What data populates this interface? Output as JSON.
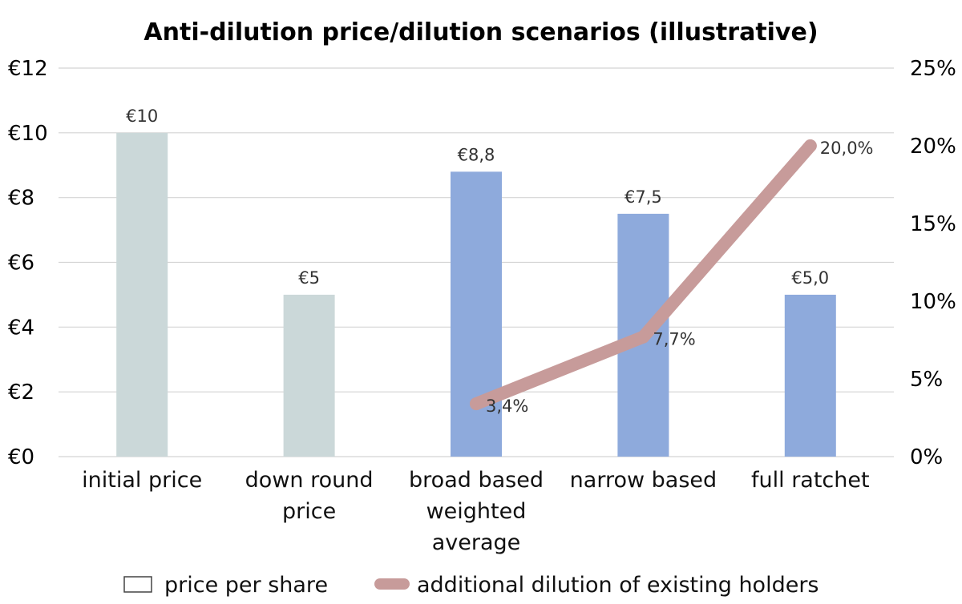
{
  "chart_data": {
    "type": "bar",
    "title": "Anti-dilution price/dilution scenarios (illustrative)",
    "categories": [
      [
        "initial price"
      ],
      [
        "down round",
        "price"
      ],
      [
        "broad based",
        "weighted",
        "average"
      ],
      [
        "narrow based"
      ],
      [
        "full ratchet"
      ]
    ],
    "series": [
      {
        "name": "price per share",
        "type": "bar",
        "axis": "left",
        "values": [
          10,
          5,
          8.8,
          7.5,
          5.0
        ],
        "labels": [
          "€10",
          "€5",
          "€8,8",
          "€7,5",
          "€5,0"
        ],
        "colors": [
          "#cbd8d9",
          "#cbd8d9",
          "#8eaadc",
          "#8eaadc",
          "#8eaadc"
        ]
      },
      {
        "name": "additional dilution of existing holders",
        "type": "line",
        "axis": "right",
        "values": [
          null,
          null,
          3.4,
          7.7,
          20.0
        ],
        "labels": [
          null,
          null,
          "3,4%",
          "7,7%",
          "20,0%"
        ],
        "color": "#c79b9a"
      }
    ],
    "y_left": {
      "ylim": [
        0,
        12
      ],
      "ticks": [
        "€0",
        "€2",
        "€4",
        "€6",
        "€8",
        "€10",
        "€12"
      ]
    },
    "y_right": {
      "ylim": [
        0,
        25
      ],
      "ticks": [
        "0%",
        "5%",
        "10%",
        "15%",
        "20%",
        "25%"
      ]
    },
    "grid": true,
    "legend_position": "bottom"
  }
}
